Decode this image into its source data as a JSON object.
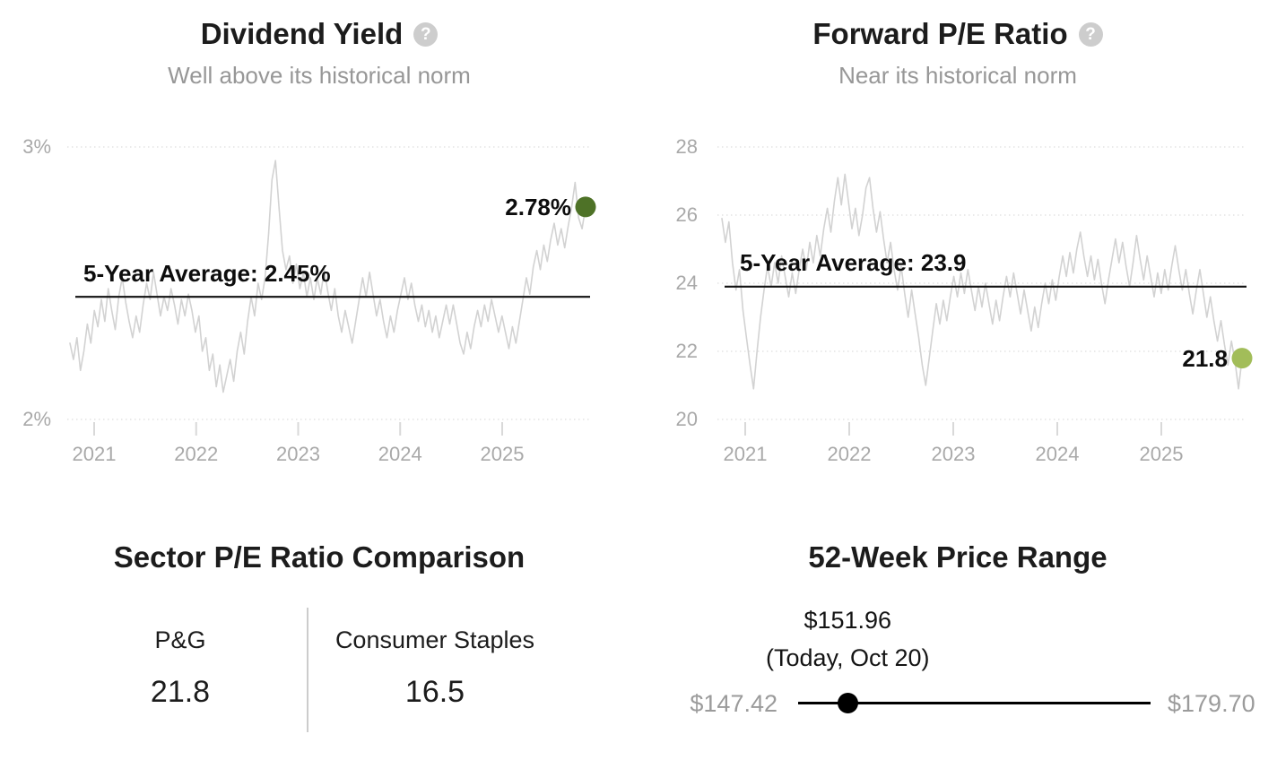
{
  "chart_data": [
    {
      "type": "line",
      "title": "Dividend Yield",
      "subtitle": "Well above its historical norm",
      "help_icon": "?",
      "grid": "dotted-horizontal",
      "legend_position": "none",
      "x_tick_labels": [
        "2021",
        "2022",
        "2023",
        "2024",
        "2025"
      ],
      "x_range_years": [
        2020.8,
        2025.8
      ],
      "y_ticks": [
        3,
        2
      ],
      "y_tick_labels": [
        "3%",
        "2%"
      ],
      "ylim": [
        2,
        3
      ],
      "average_value": 2.45,
      "average_label": "5-Year Average: 2.45%",
      "current_value": 2.78,
      "current_label": "2.78%",
      "line_color": "#d2d2d2",
      "average_line_color": "#111111",
      "dot_color": "#4e7227",
      "series": [
        {
          "name": "Dividend Yield",
          "values": [
            2.28,
            2.22,
            2.3,
            2.18,
            2.25,
            2.35,
            2.28,
            2.4,
            2.34,
            2.44,
            2.36,
            2.48,
            2.4,
            2.33,
            2.45,
            2.52,
            2.43,
            2.36,
            2.3,
            2.38,
            2.32,
            2.42,
            2.5,
            2.44,
            2.54,
            2.46,
            2.38,
            2.45,
            2.4,
            2.48,
            2.42,
            2.35,
            2.44,
            2.38,
            2.46,
            2.4,
            2.32,
            2.38,
            2.25,
            2.3,
            2.18,
            2.24,
            2.12,
            2.2,
            2.1,
            2.16,
            2.22,
            2.14,
            2.25,
            2.32,
            2.24,
            2.36,
            2.45,
            2.38,
            2.5,
            2.44,
            2.52,
            2.68,
            2.88,
            2.95,
            2.78,
            2.62,
            2.55,
            2.6,
            2.5,
            2.57,
            2.48,
            2.54,
            2.45,
            2.52,
            2.44,
            2.52,
            2.46,
            2.55,
            2.47,
            2.4,
            2.48,
            2.38,
            2.32,
            2.4,
            2.34,
            2.28,
            2.36,
            2.44,
            2.52,
            2.45,
            2.54,
            2.46,
            2.38,
            2.44,
            2.36,
            2.3,
            2.38,
            2.32,
            2.4,
            2.46,
            2.52,
            2.44,
            2.5,
            2.42,
            2.36,
            2.42,
            2.34,
            2.4,
            2.32,
            2.38,
            2.3,
            2.36,
            2.42,
            2.35,
            2.42,
            2.35,
            2.28,
            2.24,
            2.32,
            2.26,
            2.34,
            2.4,
            2.34,
            2.42,
            2.36,
            2.44,
            2.38,
            2.32,
            2.38,
            2.32,
            2.26,
            2.34,
            2.28,
            2.36,
            2.44,
            2.52,
            2.46,
            2.56,
            2.62,
            2.55,
            2.64,
            2.58,
            2.66,
            2.72,
            2.64,
            2.7,
            2.63,
            2.71,
            2.78,
            2.87,
            2.74,
            2.7,
            2.78
          ]
        }
      ]
    },
    {
      "type": "line",
      "title": "Forward P/E Ratio",
      "subtitle": "Near its historical norm",
      "help_icon": "?",
      "grid": "dotted-horizontal",
      "legend_position": "none",
      "x_tick_labels": [
        "2021",
        "2022",
        "2023",
        "2024",
        "2025"
      ],
      "x_range_years": [
        2020.8,
        2025.8
      ],
      "y_ticks": [
        28,
        26,
        24,
        22,
        20
      ],
      "y_tick_labels": [
        "28",
        "26",
        "24",
        "22",
        "20"
      ],
      "ylim": [
        20,
        28
      ],
      "average_value": 23.9,
      "average_label": "5-Year Average: 23.9",
      "current_value": 21.8,
      "current_label": "21.8",
      "line_color": "#d2d2d2",
      "average_line_color": "#111111",
      "dot_color": "#a2bd59",
      "series": [
        {
          "name": "Forward P/E Ratio",
          "values": [
            25.9,
            25.2,
            25.8,
            24.6,
            23.8,
            24.4,
            23.2,
            22.4,
            21.6,
            20.9,
            22.0,
            23.0,
            23.8,
            24.5,
            23.9,
            24.6,
            24.0,
            24.8,
            24.2,
            23.6,
            24.3,
            23.7,
            24.4,
            25.0,
            24.4,
            25.2,
            24.6,
            25.4,
            24.8,
            25.6,
            26.2,
            25.5,
            26.4,
            27.1,
            26.3,
            27.2,
            26.4,
            25.6,
            26.2,
            25.4,
            26.0,
            26.8,
            27.1,
            26.2,
            25.5,
            26.1,
            25.3,
            24.6,
            25.2,
            24.4,
            23.8,
            24.5,
            23.7,
            23.0,
            23.8,
            23.1,
            22.4,
            21.6,
            21.0,
            21.8,
            22.6,
            23.4,
            22.8,
            23.5,
            22.9,
            23.6,
            24.2,
            23.6,
            24.3,
            23.7,
            24.4,
            23.8,
            23.2,
            23.9,
            23.3,
            24.0,
            23.4,
            22.8,
            23.5,
            22.9,
            23.6,
            24.2,
            23.6,
            24.3,
            23.7,
            23.1,
            23.8,
            23.2,
            22.6,
            23.3,
            22.7,
            23.4,
            24.0,
            23.4,
            24.1,
            23.5,
            24.2,
            24.8,
            24.2,
            24.9,
            24.3,
            25.0,
            25.5,
            24.8,
            24.2,
            24.8,
            24.1,
            24.7,
            24.0,
            23.4,
            24.1,
            24.7,
            25.3,
            24.6,
            25.2,
            24.5,
            23.9,
            24.6,
            25.4,
            24.7,
            24.1,
            24.8,
            24.2,
            23.6,
            24.3,
            23.7,
            24.4,
            23.8,
            24.5,
            25.1,
            24.4,
            23.8,
            24.4,
            23.7,
            23.1,
            23.8,
            24.4,
            23.7,
            23.0,
            23.6,
            22.9,
            22.3,
            22.9,
            22.2,
            21.6,
            22.3,
            21.7,
            20.9,
            21.8
          ]
        }
      ]
    }
  ],
  "comparison": {
    "title": "Sector P/E Ratio Comparison",
    "items": [
      {
        "label": "P&G",
        "value": "21.8"
      },
      {
        "label": "Consumer Staples",
        "value": "16.5"
      }
    ]
  },
  "price_range": {
    "title": "52-Week Price Range",
    "current_label": "$151.96",
    "current_sublabel": "(Today, Oct 20)",
    "low_label": "$147.42",
    "high_label": "$179.70",
    "low": 147.42,
    "high": 179.7,
    "current": 151.96
  }
}
